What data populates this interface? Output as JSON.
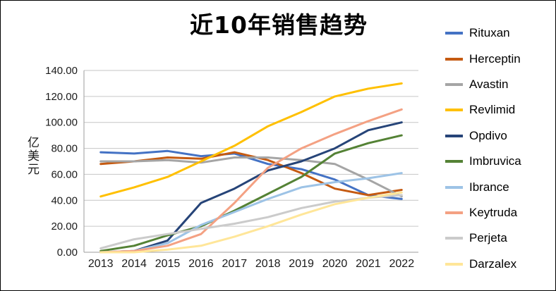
{
  "title": "近10年销售趋势",
  "y_axis": {
    "label": "亿美元",
    "tick_labels": [
      "0.00",
      "20.00",
      "40.00",
      "60.00",
      "80.00",
      "100.00",
      "120.00",
      "140.00"
    ]
  },
  "x_axis": {
    "tick_labels": [
      "2013",
      "2014",
      "2015",
      "2016",
      "2017",
      "2018",
      "2019",
      "2020",
      "2021",
      "2022"
    ]
  },
  "chart_data": {
    "type": "line",
    "title": "近10年销售趋势",
    "xlabel": "",
    "ylabel": "亿美元",
    "ylim": [
      0,
      140
    ],
    "ystep": 20,
    "grid": true,
    "legend_position": "right",
    "categories": [
      "2013",
      "2014",
      "2015",
      "2016",
      "2017",
      "2018",
      "2019",
      "2020",
      "2021",
      "2022"
    ],
    "series": [
      {
        "name": "Rituxan",
        "color": "#4472C4",
        "values": [
          77,
          76,
          78,
          74,
          76,
          68,
          64,
          56,
          44,
          41
        ]
      },
      {
        "name": "Herceptin",
        "color": "#C55A11",
        "values": [
          68,
          70,
          73,
          72,
          77,
          71,
          61,
          49,
          44,
          48
        ]
      },
      {
        "name": "Avastin",
        "color": "#A5A5A5",
        "values": [
          70,
          70,
          71,
          69,
          73,
          73,
          71,
          68,
          56,
          43
        ]
      },
      {
        "name": "Revlimid",
        "color": "#FFC000",
        "values": [
          43,
          50,
          58,
          70,
          82,
          97,
          108,
          120,
          126,
          130
        ]
      },
      {
        "name": "Opdivo",
        "color": "#264478",
        "values": [
          0,
          1,
          9,
          38,
          49,
          63,
          70,
          80,
          94,
          100
        ]
      },
      {
        "name": "Imbruvica",
        "color": "#548235",
        "values": [
          1,
          5,
          13,
          20,
          32,
          45,
          58,
          76,
          84,
          90
        ]
      },
      {
        "name": "Ibrance",
        "color": "#9DC3E6",
        "values": [
          0,
          1,
          7,
          21,
          31,
          41,
          50,
          54,
          57,
          61
        ]
      },
      {
        "name": "Keytruda",
        "color": "#F4A183",
        "values": [
          0,
          1,
          5,
          14,
          38,
          65,
          80,
          91,
          101,
          110
        ]
      },
      {
        "name": "Perjeta",
        "color": "#CBCBCB",
        "values": [
          3,
          10,
          14,
          18,
          22,
          27,
          34,
          39,
          42,
          44
        ]
      },
      {
        "name": "Darzalex",
        "color": "#FFE699",
        "values": [
          0,
          0,
          2,
          5,
          12,
          20,
          29,
          37,
          42,
          46
        ]
      }
    ]
  },
  "colors": {
    "gridline": "#C6C6C6",
    "axis": "#9E9E9E",
    "tick_text": "#1a1a1a"
  }
}
